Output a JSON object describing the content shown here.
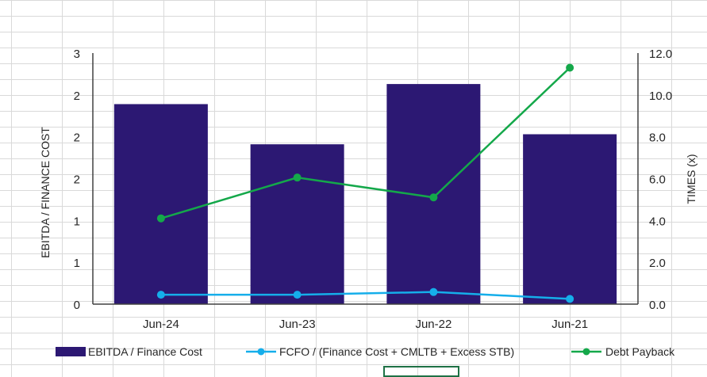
{
  "chart_data": {
    "type": "bar-line-combo",
    "categories": [
      "Jun-24",
      "Jun-23",
      "Jun-22",
      "Jun-21"
    ],
    "left_axis": {
      "label": "EBITDA / FINANCE COST",
      "ylim": [
        0,
        3
      ],
      "ticks": [
        0,
        0.5,
        1,
        1.5,
        2,
        2.5,
        3
      ],
      "tick_labels": [
        "0",
        "1",
        "1",
        "2",
        "2",
        "2",
        "3"
      ]
    },
    "right_axis": {
      "label": "TIMES (x)",
      "ylim": [
        0,
        12
      ],
      "ticks": [
        0,
        2,
        4,
        6,
        8,
        10,
        12
      ],
      "tick_labels": [
        "0.0",
        "2.0",
        "4.0",
        "6.0",
        "8.0",
        "10.0",
        "12.0"
      ]
    },
    "series": [
      {
        "name": "EBITDA / Finance Cost",
        "kind": "bar",
        "axis": "left",
        "color": "#2c1873",
        "values": [
          2.39,
          1.91,
          2.63,
          2.03
        ]
      },
      {
        "name": "FCFO / (Finance Cost + CMLTB + Excess STB)",
        "kind": "line",
        "axis": "right",
        "color": "#15aeea",
        "values": [
          0.45,
          0.45,
          0.58,
          0.25
        ]
      },
      {
        "name": "Debt Payback",
        "kind": "line",
        "axis": "right",
        "color": "#14a84a",
        "values": [
          4.1,
          6.05,
          5.1,
          11.3
        ]
      }
    ],
    "grid": false,
    "legend_position": "bottom"
  }
}
